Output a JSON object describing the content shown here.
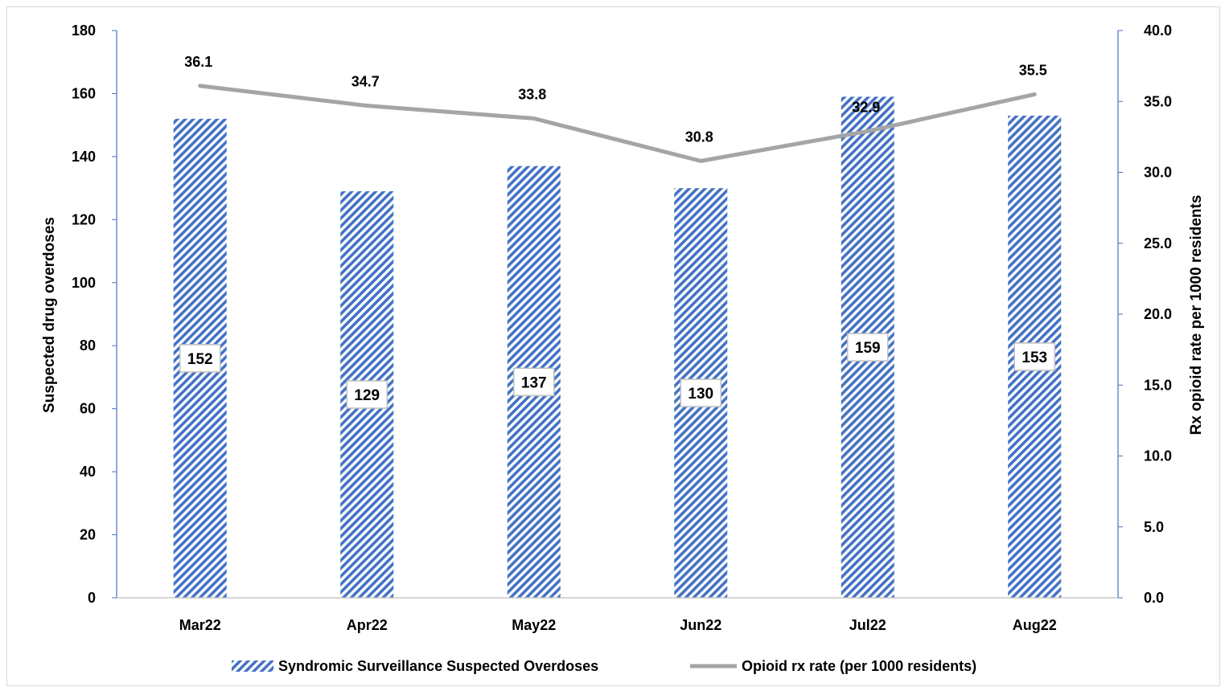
{
  "chart_data": {
    "type": "bar",
    "categories": [
      "Mar22",
      "Apr22",
      "May22",
      "Jun22",
      "Jul22",
      "Aug22"
    ],
    "series": [
      {
        "name": "Syndromic Surveillance Suspected Overdoses",
        "type": "bar",
        "axis": "left",
        "values": [
          152,
          129,
          137,
          130,
          159,
          153
        ],
        "color": "#4472c4",
        "pattern": "diagonal-stripes"
      },
      {
        "name": "Opioid rx rate (per 1000 residents)",
        "type": "line",
        "axis": "right",
        "values": [
          36.1,
          34.7,
          33.8,
          30.8,
          32.9,
          35.5
        ],
        "color": "#a5a5a5"
      }
    ],
    "ylabel_left": "Suspected drug overdoses",
    "ylabel_right": "Rx opioid rate per 1000 residents",
    "ylim_left": [
      0,
      180
    ],
    "ylim_right": [
      0,
      40
    ],
    "yticks_left": [
      "0",
      "20",
      "40",
      "60",
      "80",
      "100",
      "120",
      "140",
      "160",
      "180"
    ],
    "yticks_right": [
      "0.0",
      "5.0",
      "10.0",
      "15.0",
      "20.0",
      "25.0",
      "30.0",
      "35.0",
      "40.0"
    ],
    "grid": false,
    "legend_position": "bottom"
  }
}
